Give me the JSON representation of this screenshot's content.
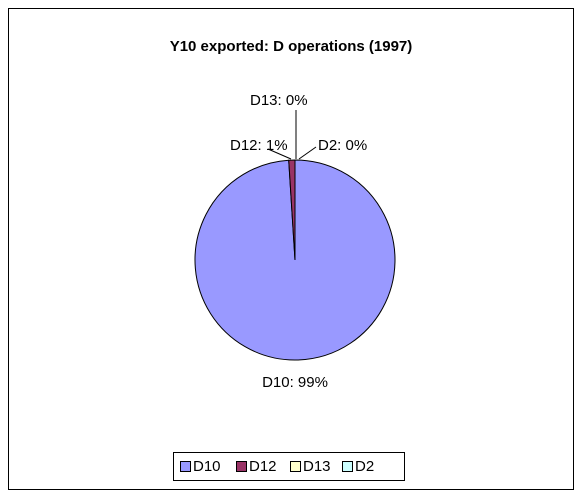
{
  "chart_data": {
    "type": "pie",
    "title": "Y10 exported: D operations (1997)",
    "categories": [
      "D10",
      "D12",
      "D13",
      "D2"
    ],
    "values": [
      99,
      1,
      0,
      0
    ],
    "value_labels": [
      "D10: 99%",
      "D12: 1%",
      "D13: 0%",
      "D2: 0%"
    ],
    "colors": [
      "#9999ff",
      "#993366",
      "#ffffcc",
      "#ccffff"
    ],
    "legend": "bottom"
  }
}
